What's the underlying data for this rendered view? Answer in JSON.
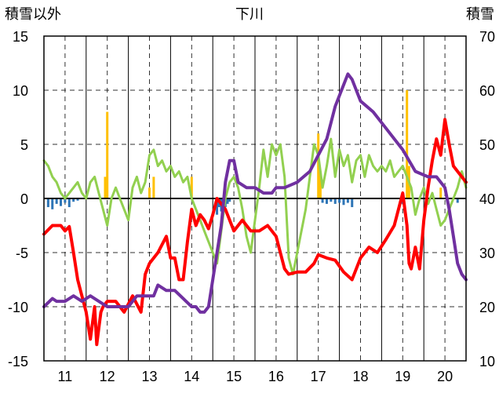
{
  "chart_data": {
    "type": "line",
    "title": "下川",
    "left_axis_label": "積雪以外",
    "right_axis_label": "積雪",
    "left_ylim": [
      -15,
      15
    ],
    "left_yticks": [
      "15",
      "10",
      "5",
      "0",
      "-5",
      "-10",
      "-15"
    ],
    "right_ylim": [
      10,
      70
    ],
    "right_yticks": [
      "70",
      "60",
      "50",
      "40",
      "30",
      "20",
      "10"
    ],
    "xlim": [
      10.5,
      20.5
    ],
    "x_categories": [
      "11",
      "12",
      "13",
      "14",
      "15",
      "16",
      "17",
      "18",
      "19",
      "20"
    ],
    "grid": true,
    "colors": {
      "red": "#ff0000",
      "purple": "#7030a0",
      "green": "#92d050",
      "orange": "#ffc000",
      "blue": "#2e75b6",
      "grid": "#000000"
    },
    "series": [
      {
        "axis": "left",
        "color": "#ff0000",
        "x": [
          10.5,
          10.7,
          10.9,
          11.0,
          11.1,
          11.2,
          11.3,
          11.4,
          11.5,
          11.6,
          11.7,
          11.75,
          11.8,
          11.85,
          11.9,
          12.0,
          12.2,
          12.4,
          12.6,
          12.8,
          12.9,
          13.0,
          13.1,
          13.2,
          13.4,
          13.5,
          13.6,
          13.7,
          13.8,
          13.9,
          14.0,
          14.1,
          14.2,
          14.3,
          14.4,
          14.5,
          14.6,
          14.8,
          15.0,
          15.2,
          15.4,
          15.6,
          15.8,
          16.0,
          16.1,
          16.2,
          16.3,
          16.5,
          16.7,
          16.9,
          17.0,
          17.2,
          17.4,
          17.6,
          17.8,
          18.0,
          18.2,
          18.4,
          18.6,
          18.8,
          19.0,
          19.1,
          19.15,
          19.2,
          19.3,
          19.4,
          19.5,
          19.6,
          19.7,
          19.8,
          19.9,
          20.0,
          20.1,
          20.2,
          20.3,
          20.4,
          20.5
        ],
        "y": [
          -3.3,
          -2.5,
          -2.5,
          -3.0,
          -2.6,
          -5.0,
          -7.5,
          -9.0,
          -10.5,
          -13.0,
          -10.0,
          -13.5,
          -12.0,
          -10.5,
          -10.0,
          -9.5,
          -9.5,
          -10.5,
          -9.0,
          -10.5,
          -7.0,
          -6.0,
          -5.5,
          -5.0,
          -3.5,
          -5.5,
          -5.5,
          -7.5,
          -7.5,
          -4.0,
          -1.0,
          -2.5,
          -1.5,
          -2.0,
          -2.8,
          -1.5,
          0.0,
          -1.0,
          -3.0,
          -2.0,
          -3.0,
          -3.0,
          -2.5,
          -3.5,
          -5.0,
          -6.5,
          -7.0,
          -6.8,
          -6.8,
          -6.0,
          -5.2,
          -5.5,
          -5.7,
          -6.8,
          -7.5,
          -5.5,
          -4.5,
          -5.0,
          -3.8,
          -2.5,
          0.5,
          -2.5,
          -6.0,
          -6.5,
          -4.5,
          -6.5,
          -2.0,
          1.0,
          3.5,
          5.5,
          4.0,
          7.3,
          5.0,
          3.0,
          2.5,
          2.0,
          1.5
        ]
      },
      {
        "axis": "right",
        "color": "#7030a0",
        "x": [
          10.5,
          10.7,
          10.8,
          11.0,
          11.2,
          11.4,
          11.6,
          11.8,
          12.0,
          12.3,
          12.5,
          12.7,
          12.9,
          13.1,
          13.2,
          13.4,
          13.6,
          13.8,
          14.0,
          14.1,
          14.2,
          14.3,
          14.4,
          14.5,
          14.6,
          14.7,
          14.8,
          14.9,
          15.0,
          15.1,
          15.3,
          15.5,
          15.7,
          15.9,
          16.0,
          16.2,
          16.5,
          16.8,
          17.0,
          17.2,
          17.4,
          17.6,
          17.7,
          17.8,
          18.0,
          18.3,
          18.6,
          19.0,
          19.3,
          19.6,
          19.8,
          20.0,
          20.1,
          20.2,
          20.3,
          20.4,
          20.5
        ],
        "y": [
          20,
          21.5,
          21,
          21,
          22,
          21,
          22,
          21,
          20,
          20,
          20,
          22,
          22,
          22,
          24,
          23,
          23,
          21.5,
          20,
          20,
          19,
          19,
          20,
          25,
          30,
          35,
          43,
          47,
          47,
          43,
          42,
          42,
          41,
          41,
          42,
          42,
          43,
          45,
          48,
          51,
          57,
          61,
          63,
          62,
          58,
          56,
          53,
          49,
          45,
          44,
          44,
          42,
          38,
          33,
          28,
          26,
          25
        ]
      },
      {
        "axis": "left",
        "color": "#92d050",
        "x": [
          10.5,
          10.6,
          10.7,
          10.8,
          10.9,
          11.0,
          11.1,
          11.2,
          11.3,
          11.4,
          11.5,
          11.6,
          11.7,
          11.8,
          11.9,
          12.0,
          12.1,
          12.2,
          12.3,
          12.4,
          12.5,
          12.6,
          12.7,
          12.8,
          12.9,
          13.0,
          13.1,
          13.2,
          13.3,
          13.4,
          13.5,
          13.6,
          13.7,
          13.8,
          13.9,
          14.0,
          14.1,
          14.2,
          14.3,
          14.4,
          14.5,
          14.6,
          14.7,
          14.8,
          14.9,
          15.0,
          15.1,
          15.2,
          15.3,
          15.4,
          15.5,
          15.6,
          15.7,
          15.8,
          15.9,
          16.0,
          16.1,
          16.2,
          16.3,
          16.4,
          16.5,
          16.6,
          16.7,
          16.8,
          16.9,
          17.0,
          17.1,
          17.2,
          17.3,
          17.4,
          17.5,
          17.6,
          17.7,
          17.8,
          17.9,
          18.0,
          18.1,
          18.2,
          18.3,
          18.4,
          18.5,
          18.6,
          18.7,
          18.8,
          18.9,
          19.0,
          19.1,
          19.2,
          19.3,
          19.4,
          19.5,
          19.6,
          19.7,
          19.8,
          19.9,
          20.0,
          20.1,
          20.2,
          20.3,
          20.4,
          20.5
        ],
        "y": [
          3.5,
          3.0,
          2.0,
          1.5,
          0.5,
          0.0,
          0.5,
          1.0,
          1.5,
          0.5,
          0.0,
          1.5,
          2.0,
          0.5,
          -1.0,
          -2.5,
          0.0,
          1.0,
          0.0,
          -1.0,
          -2.0,
          1.0,
          2.0,
          0.5,
          1.5,
          4.0,
          4.5,
          3.0,
          3.5,
          2.5,
          3.0,
          2.0,
          2.5,
          1.5,
          2.0,
          0.0,
          -1.0,
          -2.0,
          -3.0,
          -4.0,
          -5.0,
          -6.0,
          -3.0,
          0.0,
          1.5,
          2.0,
          1.0,
          -1.0,
          -3.5,
          -5.0,
          -2.0,
          1.0,
          4.5,
          2.0,
          5.0,
          4.0,
          5.0,
          2.0,
          -5.5,
          -7.0,
          -5.0,
          -3.0,
          -1.0,
          2.0,
          5.0,
          4.0,
          1.0,
          3.0,
          5.5,
          2.0,
          4.5,
          3.0,
          4.0,
          1.5,
          3.5,
          4.0,
          2.0,
          4.0,
          3.0,
          2.5,
          3.0,
          2.5,
          3.5,
          2.0,
          2.5,
          3.0,
          2.0,
          1.0,
          -1.5,
          0.0,
          1.0,
          -0.5,
          0.5,
          -1.0,
          -2.5,
          -2.0,
          -1.0,
          0.0,
          1.0,
          2.5,
          1.0
        ]
      }
    ],
    "bars_orange": {
      "axis": "left",
      "color": "#ffc000",
      "x": [
        11.95,
        12.0,
        13.0,
        13.1,
        14.0,
        17.0,
        17.05,
        19.1,
        19.15,
        19.9
      ],
      "y": [
        2.0,
        8.0,
        1.0,
        2.0,
        2.0,
        6.0,
        2.5,
        10.0,
        3.0,
        1.0
      ]
    },
    "bars_blue": {
      "axis": "left",
      "color": "#2e75b6",
      "x": [
        10.6,
        10.7,
        10.8,
        10.9,
        11.0,
        11.1,
        11.2,
        11.3,
        14.6,
        14.65,
        14.7,
        14.75,
        14.8,
        14.85,
        14.9,
        17.1,
        17.2,
        17.3,
        17.4,
        17.5,
        17.6,
        17.7,
        17.8,
        19.0,
        20.3
      ],
      "y": [
        -0.8,
        -1.0,
        -0.5,
        -0.7,
        -0.4,
        -0.8,
        -0.3,
        -0.2,
        -1.5,
        -0.8,
        -1.2,
        -1.5,
        -0.8,
        -0.5,
        -0.3,
        -0.4,
        -0.5,
        -0.3,
        -0.5,
        -0.4,
        -0.6,
        -0.4,
        -0.8,
        -0.5,
        -0.4
      ]
    }
  }
}
